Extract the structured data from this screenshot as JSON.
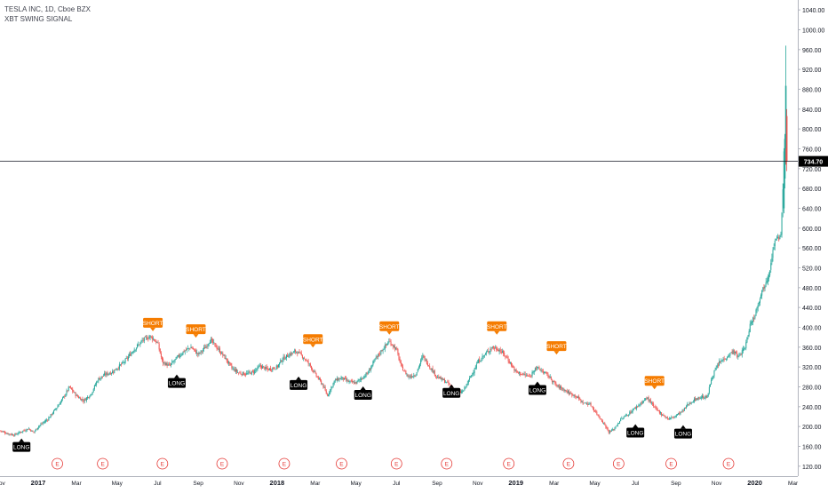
{
  "header": {
    "symbol_line": "TESLA INC, 1D, Cboe BZX",
    "indicator_name": "XBT SWING SIGNAL"
  },
  "chart_data": {
    "type": "candlestick",
    "title": "TESLA INC, 1D, Cboe BZX",
    "indicator": "XBT SWING SIGNAL",
    "ylim": [
      100,
      1060
    ],
    "y_axis_labels": [
      "120.00",
      "160.00",
      "200.00",
      "240.00",
      "280.00",
      "320.00",
      "360.00",
      "400.00",
      "440.00",
      "480.00",
      "520.00",
      "560.00",
      "600.00",
      "640.00",
      "680.00",
      "720.00",
      "760.00",
      "800.00",
      "840.00",
      "880.00",
      "920.00",
      "960.00",
      "1000.00",
      "1040.00"
    ],
    "time_labels": [
      {
        "label": "Nov",
        "t": 2016.84
      },
      {
        "label": "2017",
        "t": 2017.0
      },
      {
        "label": "Mar",
        "t": 2017.16
      },
      {
        "label": "May",
        "t": 2017.33
      },
      {
        "label": "Jul",
        "t": 2017.5
      },
      {
        "label": "Sep",
        "t": 2017.67
      },
      {
        "label": "Nov",
        "t": 2017.84
      },
      {
        "label": "2018",
        "t": 2018.0
      },
      {
        "label": "Mar",
        "t": 2018.16
      },
      {
        "label": "May",
        "t": 2018.33
      },
      {
        "label": "Jul",
        "t": 2018.5
      },
      {
        "label": "Sep",
        "t": 2018.67
      },
      {
        "label": "Nov",
        "t": 2018.84
      },
      {
        "label": "2019",
        "t": 2019.0
      },
      {
        "label": "Mar",
        "t": 2019.16
      },
      {
        "label": "May",
        "t": 2019.33
      },
      {
        "label": "Jul",
        "t": 2019.5
      },
      {
        "label": "Sep",
        "t": 2019.67
      },
      {
        "label": "Nov",
        "t": 2019.84
      },
      {
        "label": "2020",
        "t": 2020.0
      },
      {
        "label": "Mar",
        "t": 2020.16
      }
    ],
    "time_range": [
      2016.84,
      2020.18
    ],
    "price_path": [
      [
        2016.84,
        192
      ],
      [
        2016.87,
        186
      ],
      [
        2016.9,
        183
      ],
      [
        2016.93,
        190
      ],
      [
        2016.96,
        196
      ],
      [
        2016.98,
        188
      ],
      [
        2017.0,
        200
      ],
      [
        2017.04,
        215
      ],
      [
        2017.08,
        240
      ],
      [
        2017.11,
        262
      ],
      [
        2017.13,
        280
      ],
      [
        2017.16,
        262
      ],
      [
        2017.19,
        252
      ],
      [
        2017.22,
        265
      ],
      [
        2017.25,
        295
      ],
      [
        2017.28,
        305
      ],
      [
        2017.31,
        310
      ],
      [
        2017.33,
        318
      ],
      [
        2017.36,
        330
      ],
      [
        2017.4,
        355
      ],
      [
        2017.44,
        375
      ],
      [
        2017.47,
        382
      ],
      [
        2017.5,
        368
      ],
      [
        2017.52,
        330
      ],
      [
        2017.55,
        322
      ],
      [
        2017.58,
        338
      ],
      [
        2017.61,
        352
      ],
      [
        2017.64,
        360
      ],
      [
        2017.67,
        345
      ],
      [
        2017.7,
        360
      ],
      [
        2017.72,
        375
      ],
      [
        2017.75,
        358
      ],
      [
        2017.78,
        340
      ],
      [
        2017.81,
        318
      ],
      [
        2017.84,
        308
      ],
      [
        2017.87,
        306
      ],
      [
        2017.9,
        310
      ],
      [
        2017.93,
        322
      ],
      [
        2017.96,
        315
      ],
      [
        2018.0,
        320
      ],
      [
        2018.02,
        335
      ],
      [
        2018.05,
        345
      ],
      [
        2018.08,
        352
      ],
      [
        2018.11,
        340
      ],
      [
        2018.14,
        322
      ],
      [
        2018.16,
        305
      ],
      [
        2018.19,
        285
      ],
      [
        2018.21,
        262
      ],
      [
        2018.24,
        292
      ],
      [
        2018.27,
        298
      ],
      [
        2018.3,
        290
      ],
      [
        2018.33,
        288
      ],
      [
        2018.36,
        300
      ],
      [
        2018.38,
        308
      ],
      [
        2018.41,
        335
      ],
      [
        2018.44,
        355
      ],
      [
        2018.47,
        372
      ],
      [
        2018.5,
        355
      ],
      [
        2018.52,
        320
      ],
      [
        2018.55,
        300
      ],
      [
        2018.58,
        305
      ],
      [
        2018.61,
        342
      ],
      [
        2018.64,
        320
      ],
      [
        2018.67,
        300
      ],
      [
        2018.7,
        292
      ],
      [
        2018.72,
        285
      ],
      [
        2018.75,
        265
      ],
      [
        2018.78,
        272
      ],
      [
        2018.81,
        300
      ],
      [
        2018.84,
        330
      ],
      [
        2018.87,
        345
      ],
      [
        2018.9,
        360
      ],
      [
        2018.93,
        355
      ],
      [
        2018.96,
        340
      ],
      [
        2019.0,
        310
      ],
      [
        2019.03,
        305
      ],
      [
        2019.06,
        300
      ],
      [
        2019.08,
        320
      ],
      [
        2019.11,
        312
      ],
      [
        2019.14,
        300
      ],
      [
        2019.17,
        282
      ],
      [
        2019.2,
        275
      ],
      [
        2019.22,
        268
      ],
      [
        2019.25,
        262
      ],
      [
        2019.28,
        248
      ],
      [
        2019.31,
        245
      ],
      [
        2019.34,
        225
      ],
      [
        2019.37,
        205
      ],
      [
        2019.39,
        188
      ],
      [
        2019.41,
        195
      ],
      [
        2019.44,
        215
      ],
      [
        2019.47,
        225
      ],
      [
        2019.5,
        238
      ],
      [
        2019.53,
        250
      ],
      [
        2019.55,
        258
      ],
      [
        2019.58,
        238
      ],
      [
        2019.61,
        225
      ],
      [
        2019.64,
        215
      ],
      [
        2019.67,
        222
      ],
      [
        2019.7,
        232
      ],
      [
        2019.72,
        245
      ],
      [
        2019.75,
        255
      ],
      [
        2019.78,
        260
      ],
      [
        2019.8,
        258
      ],
      [
        2019.82,
        300
      ],
      [
        2019.85,
        328
      ],
      [
        2019.88,
        340
      ],
      [
        2019.91,
        352
      ],
      [
        2019.93,
        340
      ],
      [
        2019.96,
        360
      ],
      [
        2019.98,
        405
      ],
      [
        2020.0,
        425
      ],
      [
        2020.02,
        460
      ],
      [
        2020.04,
        485
      ],
      [
        2020.06,
        510
      ],
      [
        2020.07,
        540
      ],
      [
        2020.08,
        565
      ],
      [
        2020.09,
        580
      ],
      [
        2020.1,
        575
      ],
      [
        2020.11,
        595
      ],
      [
        2020.115,
        640
      ],
      [
        2020.12,
        730
      ],
      [
        2020.125,
        780
      ],
      [
        2020.13,
        734.7
      ]
    ],
    "signals": [
      {
        "type": "LONG",
        "t": 2016.93,
        "price": 183
      },
      {
        "type": "SHORT",
        "t": 2017.48,
        "price": 385
      },
      {
        "type": "LONG",
        "t": 2017.58,
        "price": 312
      },
      {
        "type": "SHORT",
        "t": 2017.66,
        "price": 372
      },
      {
        "type": "LONG",
        "t": 2018.09,
        "price": 308
      },
      {
        "type": "SHORT",
        "t": 2018.15,
        "price": 352
      },
      {
        "type": "LONG",
        "t": 2018.36,
        "price": 288
      },
      {
        "type": "SHORT",
        "t": 2018.47,
        "price": 378
      },
      {
        "type": "LONG",
        "t": 2018.73,
        "price": 292
      },
      {
        "type": "SHORT",
        "t": 2018.92,
        "price": 378
      },
      {
        "type": "LONG",
        "t": 2019.09,
        "price": 298
      },
      {
        "type": "SHORT",
        "t": 2019.17,
        "price": 338
      },
      {
        "type": "LONG",
        "t": 2019.5,
        "price": 212
      },
      {
        "type": "SHORT",
        "t": 2019.58,
        "price": 268
      },
      {
        "type": "LONG",
        "t": 2019.7,
        "price": 210
      }
    ],
    "earnings_marks": [
      2017.08,
      2017.27,
      2017.52,
      2017.77,
      2018.03,
      2018.27,
      2018.5,
      2018.71,
      2018.97,
      2019.22,
      2019.43,
      2019.65,
      2019.89
    ],
    "earnings_symbol": "E",
    "last_price_label": "734.70",
    "last_price": 734.7,
    "colors": {
      "up": "#26a69a",
      "down": "#ef5350",
      "short_label_bg": "#f57c00",
      "long_label_bg": "#000000",
      "last_price_bg": "#000000",
      "earnings": "#e53935",
      "grid_axis": "#b2b5be",
      "axis_text": "#131722"
    }
  }
}
